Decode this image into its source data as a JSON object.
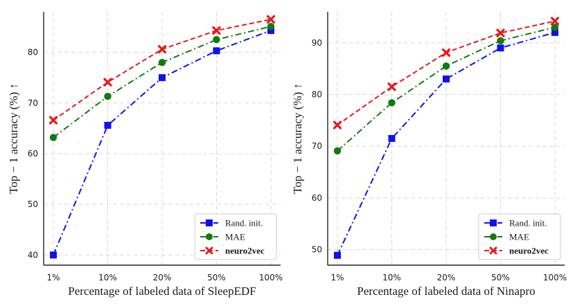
{
  "chart_data": [
    {
      "type": "line",
      "categories": [
        "1%",
        "10%",
        "20%",
        "50%",
        "100%"
      ],
      "xlabel": "Percentage of labeled data of SleepEDF",
      "ylabel": "Top − 1 accuracy (%) ↑",
      "ylim": [
        38,
        88
      ],
      "yticks": [
        40,
        50,
        60,
        70,
        80
      ],
      "grid": true,
      "legend_position": "bottom-right",
      "series": [
        {
          "name": "Rand. init.",
          "values": [
            40.0,
            65.6,
            75.0,
            80.3,
            84.3
          ],
          "color": "#1010ee",
          "marker": "square",
          "dash": "dashdot"
        },
        {
          "name": "MAE",
          "values": [
            63.2,
            71.3,
            78.0,
            82.5,
            85.1
          ],
          "color": "#117a11",
          "marker": "circle",
          "dash": "dashdot"
        },
        {
          "name": "neuro2vec",
          "values": [
            66.6,
            74.1,
            80.6,
            84.3,
            86.5
          ],
          "color": "#e61919",
          "marker": "x",
          "dash": "dashed",
          "bold": true
        }
      ]
    },
    {
      "type": "line",
      "categories": [
        "1%",
        "10%",
        "20%",
        "50%",
        "100%"
      ],
      "xlabel": "Percentage of labeled data of Ninapro",
      "ylabel": "Top − 1 accuracy (%) ↑",
      "ylim": [
        47,
        96
      ],
      "yticks": [
        50,
        60,
        70,
        80,
        90
      ],
      "grid": true,
      "legend_position": "bottom-right",
      "series": [
        {
          "name": "Rand. init.",
          "values": [
            48.9,
            71.5,
            83.0,
            89.0,
            92.0
          ],
          "color": "#1010ee",
          "marker": "square",
          "dash": "dashdot"
        },
        {
          "name": "MAE",
          "values": [
            69.1,
            78.4,
            85.5,
            90.4,
            93.0
          ],
          "color": "#117a11",
          "marker": "circle",
          "dash": "dashdot"
        },
        {
          "name": "neuro2vec",
          "values": [
            74.1,
            81.5,
            88.1,
            91.9,
            94.2
          ],
          "color": "#e61919",
          "marker": "x",
          "dash": "dashed",
          "bold": true
        }
      ]
    }
  ]
}
